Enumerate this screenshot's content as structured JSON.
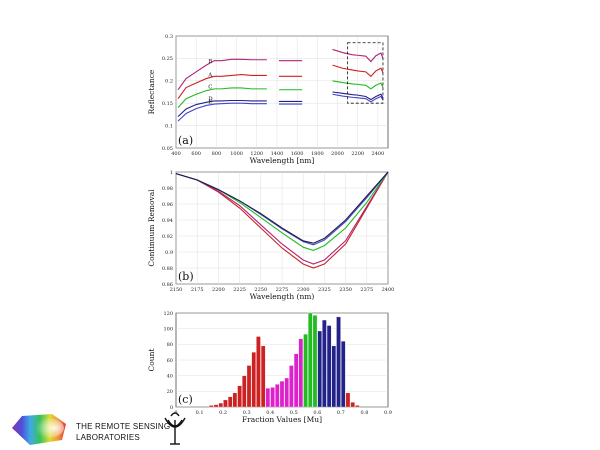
{
  "chart_data": [
    {
      "panel": "(a)",
      "type": "line",
      "xlabel": "Wavelength [nm]",
      "ylabel": "Reflectance",
      "xlim": [
        400,
        2500
      ],
      "ylim": [
        0.05,
        0.3
      ],
      "xticks": [
        400,
        600,
        800,
        1000,
        1200,
        1400,
        1600,
        1800,
        2000,
        2200,
        2400
      ],
      "yticks": [
        0.05,
        0.1,
        0.15,
        0.2,
        0.25,
        0.3
      ],
      "ytick_labels": [
        "0.05",
        "0.1",
        "0.15",
        "0.2",
        "0.25",
        "0.3"
      ],
      "grid": true,
      "gaps": [
        [
          1300,
          1420
        ],
        [
          1650,
          1950
        ]
      ],
      "highlight_box": [
        2100,
        2450,
        0.15,
        0.285
      ],
      "series": [
        {
          "name": "B",
          "color": "#b0227a",
          "x": [
            420,
            500,
            600,
            700,
            780,
            850,
            950,
            1050,
            1150,
            1300,
            1420,
            1550,
            1650,
            1950,
            2050,
            2150,
            2200,
            2280,
            2330,
            2380,
            2430,
            2450
          ],
          "y": [
            0.18,
            0.205,
            0.22,
            0.235,
            0.245,
            0.245,
            0.248,
            0.248,
            0.247,
            0.247,
            0.245,
            0.245,
            0.245,
            0.27,
            0.263,
            0.258,
            0.257,
            0.255,
            0.243,
            0.256,
            0.262,
            0.25
          ]
        },
        {
          "name": "A",
          "color": "#cc2222",
          "x": [
            420,
            500,
            600,
            700,
            780,
            850,
            950,
            1050,
            1150,
            1300,
            1420,
            1550,
            1650,
            1950,
            2050,
            2150,
            2200,
            2280,
            2330,
            2380,
            2430,
            2450
          ],
          "y": [
            0.16,
            0.185,
            0.195,
            0.205,
            0.21,
            0.21,
            0.212,
            0.214,
            0.212,
            0.212,
            0.21,
            0.21,
            0.21,
            0.235,
            0.228,
            0.224,
            0.222,
            0.22,
            0.21,
            0.222,
            0.228,
            0.218
          ]
        },
        {
          "name": "C",
          "color": "#22bb22",
          "x": [
            420,
            500,
            600,
            700,
            780,
            850,
            950,
            1050,
            1150,
            1300,
            1420,
            1550,
            1650,
            1950,
            2050,
            2150,
            2200,
            2280,
            2330,
            2380,
            2430,
            2450
          ],
          "y": [
            0.14,
            0.16,
            0.17,
            0.178,
            0.182,
            0.182,
            0.184,
            0.184,
            0.182,
            0.182,
            0.18,
            0.18,
            0.18,
            0.2,
            0.196,
            0.193,
            0.192,
            0.19,
            0.182,
            0.19,
            0.195,
            0.185
          ]
        },
        {
          "name": "D",
          "color": "#222288",
          "x": [
            420,
            500,
            600,
            700,
            780,
            850,
            950,
            1050,
            1150,
            1300,
            1420,
            1550,
            1650,
            1950,
            2050,
            2150,
            2200,
            2280,
            2330,
            2380,
            2430,
            2450
          ],
          "y": [
            0.12,
            0.137,
            0.147,
            0.152,
            0.155,
            0.155,
            0.156,
            0.156,
            0.155,
            0.155,
            0.154,
            0.154,
            0.154,
            0.175,
            0.172,
            0.169,
            0.168,
            0.165,
            0.158,
            0.165,
            0.17,
            0.162
          ]
        },
        {
          "name": "E",
          "color": "#4444cc",
          "x": [
            420,
            500,
            600,
            700,
            780,
            850,
            950,
            1050,
            1150,
            1300,
            1420,
            1550,
            1650,
            1950,
            2050,
            2150,
            2200,
            2280,
            2330,
            2380,
            2430,
            2450
          ],
          "y": [
            0.11,
            0.127,
            0.138,
            0.145,
            0.148,
            0.149,
            0.15,
            0.15,
            0.149,
            0.149,
            0.148,
            0.148,
            0.148,
            0.17,
            0.166,
            0.163,
            0.162,
            0.16,
            0.153,
            0.16,
            0.165,
            0.157
          ]
        }
      ]
    },
    {
      "panel": "(b)",
      "type": "line",
      "xlabel": "Wavelength (nm)",
      "ylabel": "Continuum Removal",
      "xlim": [
        2150,
        2400
      ],
      "ylim": [
        0.86,
        1.0
      ],
      "xticks": [
        2150,
        2175,
        2200,
        2225,
        2250,
        2275,
        2300,
        2325,
        2350,
        2375,
        2400
      ],
      "yticks": [
        0.86,
        0.88,
        0.9,
        0.92,
        0.94,
        0.96,
        0.98,
        1.0
      ],
      "ytick_labels": [
        "0.86",
        "0.88",
        "0.9",
        "0.92",
        "0.94",
        "0.96",
        "0.98",
        "1"
      ],
      "grid": true,
      "series": [
        {
          "color": "#cc2222",
          "x": [
            2150,
            2175,
            2200,
            2225,
            2250,
            2275,
            2300,
            2312,
            2325,
            2350,
            2375,
            2400
          ],
          "y": [
            0.998,
            0.99,
            0.975,
            0.955,
            0.93,
            0.905,
            0.885,
            0.88,
            0.885,
            0.91,
            0.955,
            1.0
          ]
        },
        {
          "color": "#b0227a",
          "x": [
            2150,
            2175,
            2200,
            2225,
            2250,
            2275,
            2300,
            2312,
            2325,
            2350,
            2375,
            2400
          ],
          "y": [
            0.998,
            0.99,
            0.976,
            0.958,
            0.934,
            0.91,
            0.89,
            0.885,
            0.89,
            0.914,
            0.957,
            1.0
          ]
        },
        {
          "color": "#22bb22",
          "x": [
            2150,
            2175,
            2200,
            2225,
            2250,
            2275,
            2300,
            2312,
            2325,
            2350,
            2375,
            2400
          ],
          "y": [
            0.998,
            0.99,
            0.978,
            0.962,
            0.943,
            0.924,
            0.906,
            0.902,
            0.908,
            0.93,
            0.962,
            1.0
          ]
        },
        {
          "color": "#4444cc",
          "x": [
            2150,
            2175,
            2200,
            2225,
            2250,
            2275,
            2300,
            2312,
            2325,
            2350,
            2375,
            2400
          ],
          "y": [
            0.998,
            0.99,
            0.978,
            0.964,
            0.947,
            0.929,
            0.913,
            0.909,
            0.915,
            0.938,
            0.968,
            1.0
          ]
        },
        {
          "color": "#222244",
          "x": [
            2150,
            2175,
            2200,
            2225,
            2250,
            2275,
            2300,
            2312,
            2325,
            2350,
            2375,
            2400
          ],
          "y": [
            0.998,
            0.99,
            0.978,
            0.964,
            0.948,
            0.93,
            0.914,
            0.911,
            0.917,
            0.94,
            0.97,
            1.0
          ]
        }
      ]
    },
    {
      "panel": "(c)",
      "type": "bar",
      "xlabel": "Fraction Values [Mu]",
      "ylabel": "Count",
      "xlim": [
        0,
        0.9
      ],
      "ylim": [
        0,
        120
      ],
      "xticks": [
        0,
        0.1,
        0.2,
        0.3,
        0.4,
        0.5,
        0.6,
        0.7,
        0.8,
        0.9
      ],
      "xtick_labels": [
        "0",
        "0.1",
        "0.2",
        "0.3",
        "0.4",
        "0.5",
        "0.6",
        "0.7",
        "0.8",
        "0.9"
      ],
      "yticks": [
        0,
        20,
        40,
        60,
        80,
        100,
        120
      ],
      "bin_width": 0.02,
      "bins": [
        {
          "x": 0.15,
          "count": 2,
          "color": "#cc2222"
        },
        {
          "x": 0.17,
          "count": 3,
          "color": "#cc2222"
        },
        {
          "x": 0.19,
          "count": 5,
          "color": "#cc2222"
        },
        {
          "x": 0.21,
          "count": 9,
          "color": "#cc2222"
        },
        {
          "x": 0.23,
          "count": 13,
          "color": "#cc2222"
        },
        {
          "x": 0.25,
          "count": 18,
          "color": "#cc2222"
        },
        {
          "x": 0.27,
          "count": 27,
          "color": "#cc2222"
        },
        {
          "x": 0.29,
          "count": 40,
          "color": "#cc2222"
        },
        {
          "x": 0.31,
          "count": 53,
          "color": "#cc2222"
        },
        {
          "x": 0.33,
          "count": 70,
          "color": "#cc2222"
        },
        {
          "x": 0.35,
          "count": 90,
          "color": "#cc2222"
        },
        {
          "x": 0.37,
          "count": 78,
          "color": "#cc2222"
        },
        {
          "x": 0.39,
          "count": 24,
          "color": "#dd22cc"
        },
        {
          "x": 0.41,
          "count": 25,
          "color": "#dd22cc"
        },
        {
          "x": 0.43,
          "count": 29,
          "color": "#dd22cc"
        },
        {
          "x": 0.45,
          "count": 33,
          "color": "#dd22cc"
        },
        {
          "x": 0.47,
          "count": 37,
          "color": "#dd22cc"
        },
        {
          "x": 0.49,
          "count": 53,
          "color": "#dd22cc"
        },
        {
          "x": 0.51,
          "count": 68,
          "color": "#dd22cc"
        },
        {
          "x": 0.53,
          "count": 87,
          "color": "#dd22cc"
        },
        {
          "x": 0.55,
          "count": 93,
          "color": "#22bb22"
        },
        {
          "x": 0.57,
          "count": 120,
          "color": "#22bb22"
        },
        {
          "x": 0.59,
          "count": 117,
          "color": "#22bb22"
        },
        {
          "x": 0.61,
          "count": 97,
          "color": "#222288"
        },
        {
          "x": 0.63,
          "count": 111,
          "color": "#222288"
        },
        {
          "x": 0.65,
          "count": 104,
          "color": "#222288"
        },
        {
          "x": 0.67,
          "count": 78,
          "color": "#222288"
        },
        {
          "x": 0.69,
          "count": 115,
          "color": "#222288"
        },
        {
          "x": 0.71,
          "count": 84,
          "color": "#222288"
        },
        {
          "x": 0.73,
          "count": 18,
          "color": "#cc2222"
        },
        {
          "x": 0.75,
          "count": 6,
          "color": "#cc2222"
        },
        {
          "x": 0.77,
          "count": 2,
          "color": "#cc2222"
        }
      ]
    }
  ],
  "logo": {
    "text_line1": "THE REMOTE SENSING",
    "text_line2": "LABORATORIES",
    "rainbow_colors": [
      "#7a1fa2",
      "#3b3bd6",
      "#2aa0e0",
      "#22bb44",
      "#d8d820",
      "#f08a20",
      "#e02020"
    ]
  }
}
